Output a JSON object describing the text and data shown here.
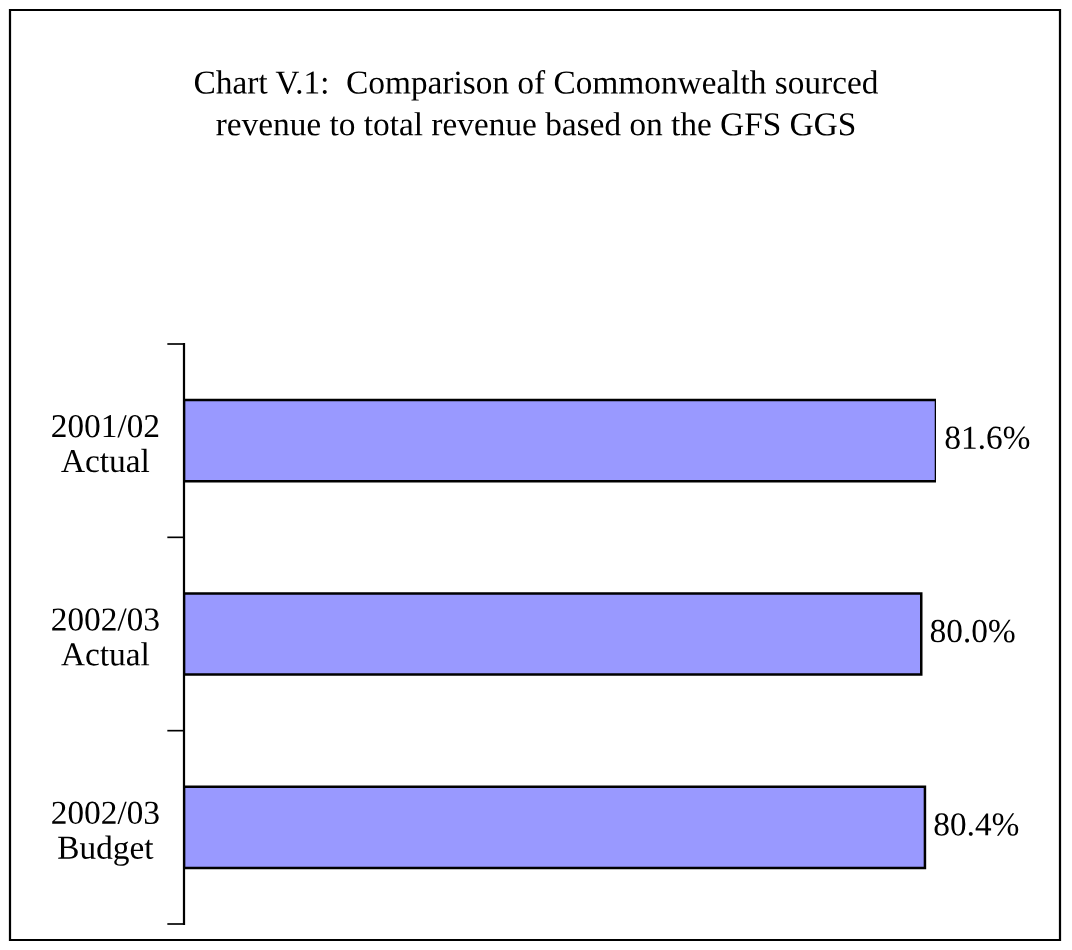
{
  "chart_data": {
    "type": "bar",
    "orientation": "horizontal",
    "title": "Chart V.1:  Comparison of Commonwealth sourced\nrevenue to total revenue based on the GFS GGS",
    "categories": [
      "2001/02\nActual",
      "2002/03\nActual",
      "2002/03\nBudget"
    ],
    "values": [
      81.6,
      80.0,
      80.4
    ],
    "value_labels": [
      "81.6%",
      "80.0%",
      "80.4%"
    ],
    "color": "#9999ff",
    "grid": false,
    "legend": false
  }
}
